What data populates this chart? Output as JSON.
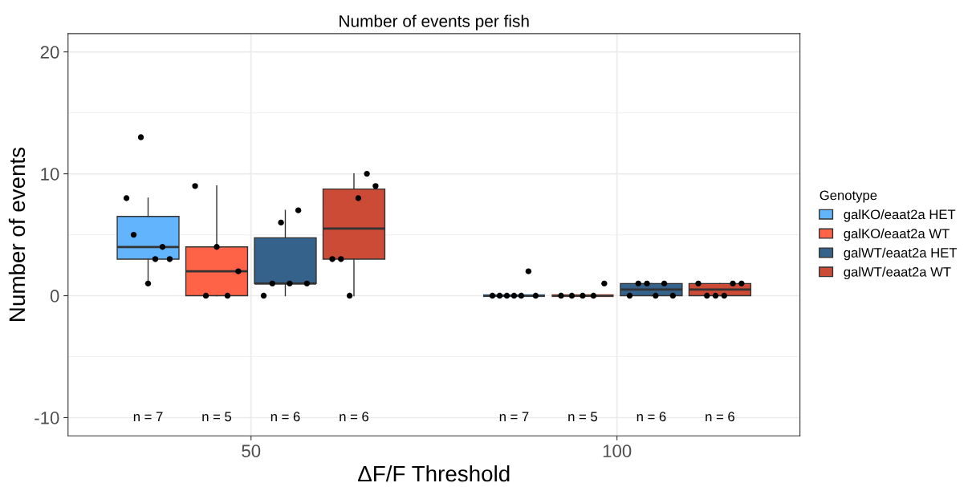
{
  "chart_data": {
    "type": "box",
    "title": "Number of events per fish",
    "xlabel": "ΔF/F Threshold",
    "ylabel": "Number of events",
    "legend_title": "Genotype",
    "categories": [
      "50",
      "100"
    ],
    "ylim": [
      -11.5,
      21.5
    ],
    "yticks": [
      -10,
      0,
      10,
      20
    ],
    "grid": true,
    "legend": "right",
    "series": [
      {
        "name": "galKO/eaat2a HET",
        "color": "#62b4fc",
        "boxes": [
          {
            "low": 1,
            "q1": 3,
            "median": 4,
            "q3": 6.5,
            "high": 8
          },
          {
            "low": 0,
            "q1": 0,
            "median": 0,
            "q3": 0,
            "high": 0
          }
        ]
      },
      {
        "name": "galKO/eaat2a WT",
        "color": "#fe6347",
        "boxes": [
          {
            "low": 0,
            "q1": 0,
            "median": 2,
            "q3": 4,
            "high": 9
          },
          {
            "low": 0,
            "q1": 0,
            "median": 0,
            "q3": 0,
            "high": 0
          }
        ]
      },
      {
        "name": "galWT/eaat2a HET",
        "color": "#35628a",
        "boxes": [
          {
            "low": 0,
            "q1": 1,
            "median": 1,
            "q3": 4.75,
            "high": 7
          },
          {
            "low": 0,
            "q1": 0,
            "median": 0.5,
            "q3": 1,
            "high": 1
          }
        ]
      },
      {
        "name": "galWT/eaat2a WT",
        "color": "#cb4b36",
        "boxes": [
          {
            "low": 0,
            "q1": 3,
            "median": 5.5,
            "q3": 8.75,
            "high": 10
          },
          {
            "low": 0,
            "q1": 0,
            "median": 0.5,
            "q3": 1,
            "high": 1
          }
        ]
      },
      {
        "type": "scatter",
        "color": "#000000",
        "x": [
          "50",
          "50",
          "50",
          "50",
          "50",
          "50",
          "50",
          "100",
          "100",
          "100",
          "100",
          "100",
          "100",
          "100"
        ],
        "values": [
          8,
          5,
          13,
          1,
          3,
          4,
          3,
          0,
          0,
          0,
          0,
          0,
          2,
          0
        ]
      },
      {
        "type": "scatter",
        "color": "#000000",
        "x": [
          "50",
          "50",
          "50",
          "50",
          "50",
          "100",
          "100",
          "100",
          "100",
          "100"
        ],
        "values": [
          9,
          0,
          4,
          0,
          2,
          0,
          0,
          0,
          0,
          1
        ]
      },
      {
        "type": "scatter",
        "color": "#000000",
        "x": [
          "50",
          "50",
          "50",
          "50",
          "50",
          "50",
          "100",
          "100",
          "100",
          "100",
          "100",
          "100"
        ],
        "values": [
          0,
          1,
          6,
          1,
          7,
          1,
          0,
          1,
          1,
          0,
          1,
          0
        ]
      },
      {
        "type": "scatter",
        "color": "#000000",
        "x": [
          "50",
          "50",
          "50",
          "50",
          "50",
          "50",
          "100",
          "100",
          "100",
          "100",
          "100",
          "100"
        ],
        "values": [
          3,
          3,
          0,
          8,
          10,
          9,
          1,
          0,
          0,
          0,
          1,
          1
        ]
      }
    ],
    "annotations": [
      "n = 7",
      "n = 5",
      "n = 6",
      "n = 6",
      "n = 7",
      "n = 5",
      "n = 6",
      "n = 6"
    ]
  }
}
